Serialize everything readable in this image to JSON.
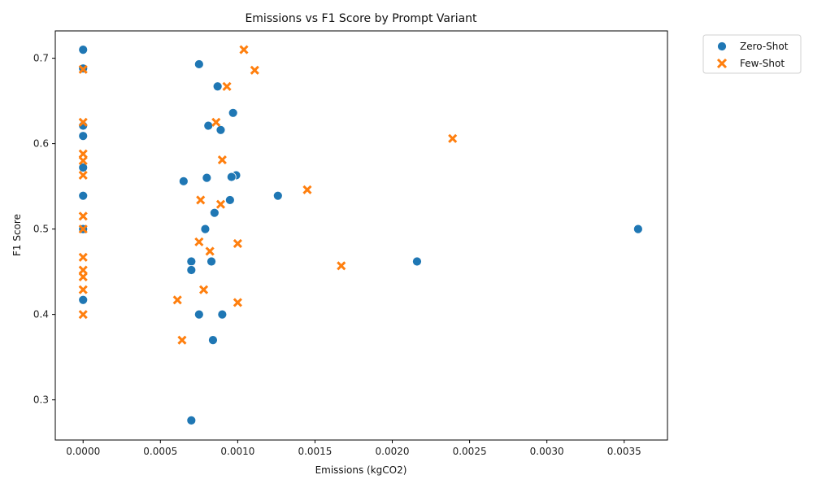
{
  "chart_data": {
    "type": "scatter",
    "title": "Emissions vs F1 Score by Prompt Variant",
    "xlabel": "Emissions (kgCO2)",
    "ylabel": "F1 Score",
    "xlim": [
      -0.00018,
      0.00378
    ],
    "ylim": [
      0.253,
      0.732
    ],
    "xticks": [
      0.0,
      0.0005,
      0.001,
      0.0015,
      0.002,
      0.0025,
      0.003,
      0.0035
    ],
    "xtick_labels": [
      "0.0000",
      "0.0005",
      "0.0010",
      "0.0015",
      "0.0020",
      "0.0025",
      "0.0030",
      "0.0035"
    ],
    "yticks": [
      0.3,
      0.4,
      0.5,
      0.6,
      0.7
    ],
    "ytick_labels": [
      "0.3",
      "0.4",
      "0.5",
      "0.6",
      "0.7"
    ],
    "grid": false,
    "legend_position": "outside upper right",
    "series": [
      {
        "name": "Zero-Shot",
        "marker": "circle",
        "color": "#1f77b4",
        "points": [
          [
            0.0,
            0.71
          ],
          [
            0.0,
            0.688
          ],
          [
            0.0,
            0.621
          ],
          [
            0.0,
            0.609
          ],
          [
            0.0,
            0.572
          ],
          [
            0.0,
            0.539
          ],
          [
            0.0,
            0.5
          ],
          [
            0.0,
            0.417
          ],
          [
            0.00075,
            0.693
          ],
          [
            0.00087,
            0.667
          ],
          [
            0.00097,
            0.636
          ],
          [
            0.00081,
            0.621
          ],
          [
            0.00089,
            0.616
          ],
          [
            0.00065,
            0.556
          ],
          [
            0.0008,
            0.56
          ],
          [
            0.00099,
            0.563
          ],
          [
            0.00096,
            0.561
          ],
          [
            0.00095,
            0.534
          ],
          [
            0.00126,
            0.539
          ],
          [
            0.00085,
            0.519
          ],
          [
            0.00079,
            0.5
          ],
          [
            0.0007,
            0.462
          ],
          [
            0.00083,
            0.462
          ],
          [
            0.0007,
            0.452
          ],
          [
            0.00075,
            0.4
          ],
          [
            0.0009,
            0.4
          ],
          [
            0.00084,
            0.37
          ],
          [
            0.0007,
            0.276
          ],
          [
            0.00216,
            0.462
          ],
          [
            0.00359,
            0.5
          ]
        ]
      },
      {
        "name": "Few-Shot",
        "marker": "x",
        "color": "#ff7f0e",
        "points": [
          [
            0.0,
            0.687
          ],
          [
            0.0,
            0.625
          ],
          [
            0.0,
            0.588
          ],
          [
            0.0,
            0.58
          ],
          [
            0.0,
            0.563
          ],
          [
            0.0,
            0.515
          ],
          [
            0.0,
            0.5
          ],
          [
            0.0,
            0.467
          ],
          [
            0.0,
            0.452
          ],
          [
            0.0,
            0.444
          ],
          [
            0.0,
            0.429
          ],
          [
            0.0,
            0.4
          ],
          [
            0.00104,
            0.71
          ],
          [
            0.00111,
            0.686
          ],
          [
            0.00093,
            0.667
          ],
          [
            0.00086,
            0.625
          ],
          [
            0.0009,
            0.581
          ],
          [
            0.00076,
            0.534
          ],
          [
            0.00089,
            0.529
          ],
          [
            0.00075,
            0.485
          ],
          [
            0.00082,
            0.474
          ],
          [
            0.001,
            0.483
          ],
          [
            0.00078,
            0.429
          ],
          [
            0.00061,
            0.417
          ],
          [
            0.001,
            0.414
          ],
          [
            0.00064,
            0.37
          ],
          [
            0.00145,
            0.546
          ],
          [
            0.00167,
            0.457
          ],
          [
            0.00239,
            0.606
          ]
        ]
      }
    ]
  }
}
